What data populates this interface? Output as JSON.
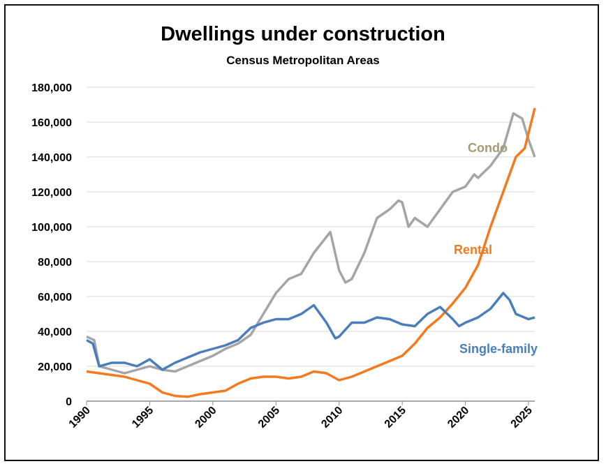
{
  "chart_data": {
    "type": "line",
    "title": "Dwellings under construction",
    "subtitle": "Census Metropolitan Areas",
    "xlabel": "",
    "ylabel": "",
    "xlim": [
      1990,
      2025.6
    ],
    "ylim": [
      0,
      180000
    ],
    "grid": true,
    "y_ticks": [
      0,
      20000,
      40000,
      60000,
      80000,
      100000,
      120000,
      140000,
      160000,
      180000
    ],
    "y_tick_labels": [
      "0",
      "20,000",
      "40,000",
      "60,000",
      "80,000",
      "100,000",
      "120,000",
      "140,000",
      "160,000",
      "180,000"
    ],
    "x_ticks": [
      1990,
      1995,
      2000,
      2005,
      2010,
      2015,
      2020,
      2025
    ],
    "x_tick_labels": [
      "1990",
      "1995",
      "2000",
      "2005",
      "2010",
      "2015",
      "2020",
      "2025"
    ],
    "series": [
      {
        "name": "Condo",
        "color": "#a5a5a5",
        "label_color": "#a39b76",
        "x": [
          1990,
          1990.6,
          1991,
          1992,
          1993,
          1994,
          1995,
          1996,
          1997,
          1998,
          1999,
          2000,
          2001,
          2002,
          2003,
          2004,
          2005,
          2006,
          2007,
          2008,
          2009.3,
          2010,
          2010.5,
          2011,
          2012,
          2013,
          2014,
          2014.7,
          2015,
          2015.5,
          2016,
          2017,
          2018,
          2019,
          2020,
          2020.7,
          2021,
          2022,
          2023,
          2023.8,
          2024.5,
          2025,
          2025.5
        ],
        "y": [
          37000,
          35000,
          20000,
          18000,
          16000,
          18000,
          20000,
          18000,
          17000,
          20000,
          23000,
          26000,
          30000,
          33000,
          38000,
          50000,
          62000,
          70000,
          73000,
          85000,
          97000,
          75000,
          68000,
          70000,
          85000,
          105000,
          110000,
          115000,
          114000,
          100000,
          105000,
          100000,
          110000,
          120000,
          123000,
          130000,
          128000,
          135000,
          145000,
          165000,
          162000,
          150000,
          140000
        ]
      },
      {
        "name": "Rental",
        "color": "#f47a1f",
        "label_color": "#f47a1f",
        "x": [
          1990,
          1991,
          1993,
          1994,
          1995,
          1996,
          1997,
          1998,
          1999,
          2000,
          2001,
          2002,
          2003,
          2004,
          2005,
          2006,
          2007,
          2008,
          2009,
          2010,
          2011,
          2012,
          2013,
          2014,
          2015,
          2016,
          2017,
          2018,
          2019,
          2020,
          2021,
          2022,
          2023,
          2024,
          2024.7,
          2025.5
        ],
        "y": [
          17000,
          16000,
          14000,
          12000,
          10000,
          5000,
          3000,
          2500,
          4000,
          5000,
          6000,
          10000,
          13000,
          14000,
          14000,
          13000,
          14000,
          17000,
          16000,
          12000,
          14000,
          17000,
          20000,
          23000,
          26000,
          33000,
          42000,
          48000,
          56000,
          65000,
          78000,
          100000,
          120000,
          140000,
          145000,
          168000
        ]
      },
      {
        "name": "Single-family",
        "color": "#4a7ebb",
        "label_color": "#4a7ebb",
        "x": [
          1990,
          1990.5,
          1991,
          1992,
          1993,
          1994,
          1995,
          1996,
          1997,
          1998,
          1999,
          2000,
          2001,
          2002,
          2003,
          2004,
          2005,
          2006,
          2007,
          2008,
          2009,
          2009.7,
          2010,
          2011,
          2012,
          2013,
          2014,
          2015,
          2016,
          2017,
          2018,
          2019,
          2019.5,
          2020,
          2021,
          2022,
          2023,
          2023.5,
          2024,
          2025,
          2025.5
        ],
        "y": [
          35000,
          33000,
          20000,
          22000,
          22000,
          20000,
          24000,
          18000,
          22000,
          25000,
          28000,
          30000,
          32000,
          35000,
          42000,
          45000,
          47000,
          47000,
          50000,
          55000,
          45000,
          36000,
          37000,
          45000,
          45000,
          48000,
          47000,
          44000,
          43000,
          50000,
          54000,
          47000,
          43000,
          45000,
          48000,
          53000,
          62000,
          58000,
          50000,
          47000,
          48000
        ]
      }
    ]
  }
}
